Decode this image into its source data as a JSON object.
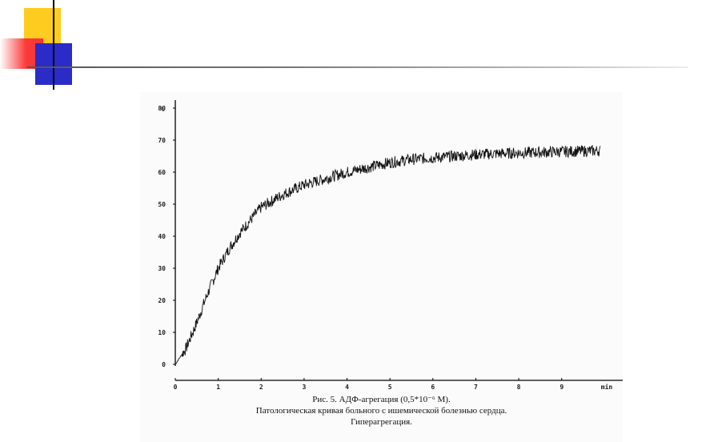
{
  "slide": {
    "accent_yellow": "#fecc1f",
    "accent_red": "#f53636",
    "accent_blue": "#2b2bc8"
  },
  "caption": {
    "line1": "Рис. 5. АДФ-агрегация (0,5*10⁻⁶ М).",
    "line2": "Патологическая кривая больного с ишемической болезнью сердца.",
    "line3": "Гиперагрегация."
  },
  "chart_data": {
    "type": "line",
    "title": "",
    "xlabel": "min",
    "ylabel": "%",
    "xlim": [
      0,
      9.9
    ],
    "ylim": [
      0,
      80
    ],
    "x_ticks": [
      "0",
      "1",
      "2",
      "3",
      "4",
      "5",
      "6",
      "7",
      "8",
      "9"
    ],
    "x_unit_label": "min",
    "y_ticks": [
      "0",
      "10",
      "20",
      "30",
      "40",
      "50",
      "60",
      "70",
      "80"
    ],
    "y_unit_label": "%",
    "grid": false,
    "series": [
      {
        "x": [
          0,
          0.25,
          0.5,
          0.75,
          1.0,
          1.25,
          1.5,
          1.75,
          2.0,
          2.5,
          3.0,
          3.5,
          4.0,
          4.5,
          5.0,
          5.5,
          6.0,
          6.5,
          7.0,
          7.5,
          8.0,
          8.5,
          9.0,
          9.5,
          9.9
        ],
        "y": [
          0,
          5,
          13,
          22,
          30,
          36,
          41,
          45,
          49,
          53,
          56,
          58,
          60,
          61.5,
          63,
          64,
          64.5,
          65,
          65.5,
          65.8,
          66,
          66.2,
          66.4,
          66.6,
          66.7
        ]
      }
    ]
  }
}
